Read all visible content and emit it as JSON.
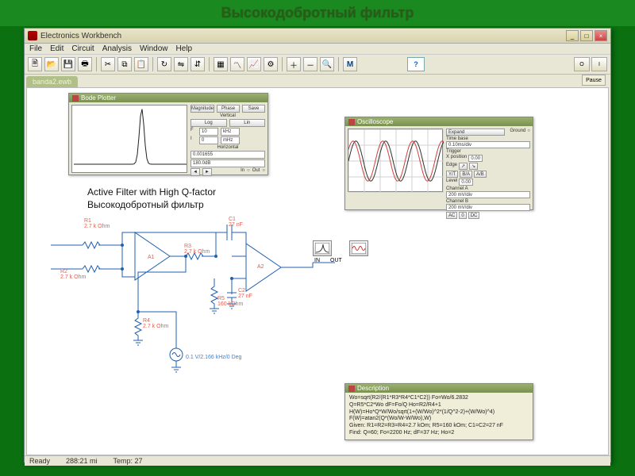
{
  "slide": {
    "title": "Высокодобротный фильтр"
  },
  "app": {
    "title": "Electronics Workbench",
    "menus": [
      "File",
      "Edit",
      "Circuit",
      "Analysis",
      "Window",
      "Help"
    ],
    "pause": "Pause",
    "doc_tab": "banda2.ewb",
    "status": {
      "ready": "Ready",
      "coord": "288:21 mi",
      "temp": "Temp: 27"
    }
  },
  "bode": {
    "title": "Bode Plotter",
    "btns_top": [
      "Magnitude",
      "Phase",
      "Save"
    ],
    "labels": {
      "vertical": "Vertical",
      "horizontal": "Horizontal",
      "log": "Log",
      "lin": "Lin",
      "F": "F",
      "I": "I",
      "in": "In",
      "out": "Out"
    },
    "v_top": "10",
    "v_unit_t": "kHz",
    "v_bot": "0",
    "v_unit_b": "mHz",
    "h_top": "100",
    "h_unit": "―",
    "r1": "0.001655",
    "r2": "180.0dB",
    "peak_x": 0.6
  },
  "scope": {
    "title": "Oscilloscope",
    "expand": "Expand",
    "ground": "Ground",
    "time": "Time base",
    "tb_val": "0.10ms/div",
    "xpos": "X position",
    "xp_val": "0.00",
    "yt": "Y/T",
    "ba": "B/A",
    "ab": "A/B",
    "cha": "Channel A",
    "a_val": "200 mV/div",
    "ay": "Y position",
    "ay_val": "0.00",
    "chb": "Channel B",
    "b_val": "200 mV/div",
    "by": "Y position",
    "by_val": "0.00",
    "trig": "Trigger",
    "edge": "Edge",
    "level": "Level",
    "lv": "0.00",
    "auto": "Auto",
    "a": "A",
    "b": "B",
    "ex": "Ext",
    "ac": "AC",
    "zero": "0",
    "dc": "DC",
    "waves": {
      "a_color": "#d04040",
      "b_color": "#303030",
      "amplitude": 0.7,
      "periods": 3.2,
      "phase_b_deg": 35
    },
    "grid_color": "#d0d0d0"
  },
  "circuit": {
    "title_en": "Active Filter with High Q-factor",
    "title_ru": "Высокодобротный  фильтр",
    "labels": {
      "R1": "R1\n2.7 k Ohm",
      "R2": "R2\n2.7 k Ohm",
      "R3": "R3\n2.7 k Ohm",
      "R4": "R4\n2.7 k Ohm",
      "R5": "R5\n160 kOhm",
      "C1": "C1\n27 nF",
      "C2": "C2\n27 nF",
      "A1": "A1",
      "A2": "A2",
      "src": "0.1 V/2.166 kHz/0 Deg",
      "in": "IN",
      "out": "OUT"
    },
    "color_label": "#e06050",
    "color_wire": "#2060b0",
    "color_black": "#000"
  },
  "desc": {
    "title": "Description",
    "lines": [
      "Wo=sqrt(R2/(R1*R3*R4*C1*C2))      Fo=Wo/6.2832",
      "Q=R5*C2*Wo        dF=Fo/Q        Ho=R2/R4+1",
      "H(W)=Ho*Q*W/Wo/sqrt(1+(W/Wo)^2*(1/Q^2-2)+(W/Wo)^4)",
      "F(W)=atan2(Q*(Wo/W-W/Wo),W)",
      "Given: R1=R2=R3=R4=2.7 kOm; R5=160 kOm; C1=C2=27 nF",
      "Find: Q=60; Fo=2200 Hz; dF=37 Hz; Ho=2"
    ]
  }
}
